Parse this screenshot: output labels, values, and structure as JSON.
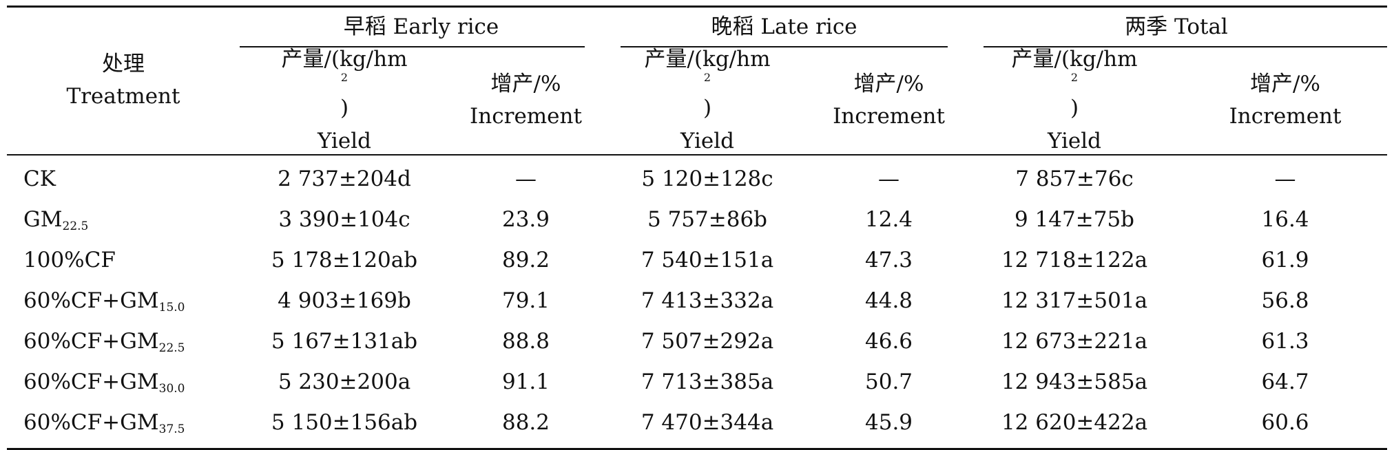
{
  "table": {
    "header": {
      "treatment_cn": "处理",
      "treatment_en": "Treatment",
      "groups": [
        {
          "cn": "早稻",
          "en": "Early rice"
        },
        {
          "cn": "晚稻",
          "en": "Late rice"
        },
        {
          "cn": "两季",
          "en": "Total"
        }
      ],
      "yield_cn": "产量/(kg/hm",
      "yield_sup": "2",
      "yield_close": ")",
      "yield_en": "Yield",
      "incr_cn": "增产/%",
      "incr_en": "Increment"
    },
    "rows": [
      {
        "name": "CK",
        "sub": "",
        "early_yield": "2 737±204d",
        "early_incr": "—",
        "late_yield": "5 120±128c",
        "late_incr": "—",
        "total_yield": "7 857±76c",
        "total_incr": "—"
      },
      {
        "name": "GM",
        "sub": "22.5",
        "early_yield": "3 390±104c",
        "early_incr": "23.9",
        "late_yield": "5 757±86b",
        "late_incr": "12.4",
        "total_yield": "9 147±75b",
        "total_incr": "16.4"
      },
      {
        "name": "100%CF",
        "sub": "",
        "early_yield": "5 178±120ab",
        "early_incr": "89.2",
        "late_yield": "7 540±151a",
        "late_incr": "47.3",
        "total_yield": "12 718±122a",
        "total_incr": "61.9"
      },
      {
        "name": "60%CF+GM",
        "sub": "15.0",
        "early_yield": "4 903±169b",
        "early_incr": "79.1",
        "late_yield": "7 413±332a",
        "late_incr": "44.8",
        "total_yield": "12 317±501a",
        "total_incr": "56.8"
      },
      {
        "name": "60%CF+GM",
        "sub": "22.5",
        "early_yield": "5 167±131ab",
        "early_incr": "88.8",
        "late_yield": "7 507±292a",
        "late_incr": "46.6",
        "total_yield": "12 673±221a",
        "total_incr": "61.3"
      },
      {
        "name": "60%CF+GM",
        "sub": "30.0",
        "early_yield": "5 230±200a",
        "early_incr": "91.1",
        "late_yield": "7 713±385a",
        "late_incr": "50.7",
        "total_yield": "12 943±585a",
        "total_incr": "64.7"
      },
      {
        "name": "60%CF+GM",
        "sub": "37.5",
        "early_yield": "5 150±156ab",
        "early_incr": "88.2",
        "late_yield": "7 470±344a",
        "late_incr": "45.9",
        "total_yield": "12 620±422a",
        "total_incr": "60.6"
      }
    ]
  }
}
